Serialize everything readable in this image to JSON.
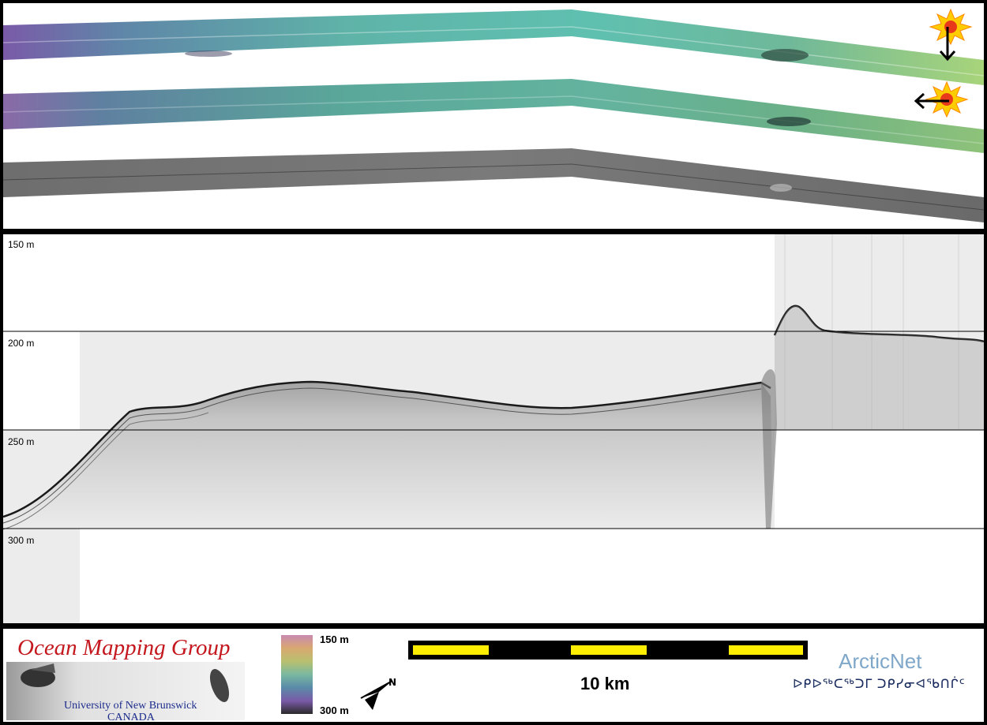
{
  "depth_labels": [
    "150 m",
    "200 m",
    "250 m",
    "300 m"
  ],
  "logo": {
    "title": "Ocean Mapping Group",
    "subtitle_1": "University of New Brunswick",
    "subtitle_2": "CANADA"
  },
  "colorbar": {
    "top_label": "150 m",
    "bottom_label": "300 m"
  },
  "scale_bar": {
    "label": "10 km"
  },
  "arcticnet": {
    "name": "ArcticNet",
    "syllabics": "ᐅᑭᐅᖅᑕᖅᑐᒥ ᑐᑭᓯᓂᐊᖃᑎᒌᑦ"
  },
  "north_arrow": {
    "label": "N"
  },
  "colors": {
    "swath_teal": "#5fb8a8",
    "swath_purple": "#8a6aa8",
    "swath_green": "#8ec27a",
    "scale_yellow": "#ffee00",
    "logo_red": "#c4171e"
  }
}
